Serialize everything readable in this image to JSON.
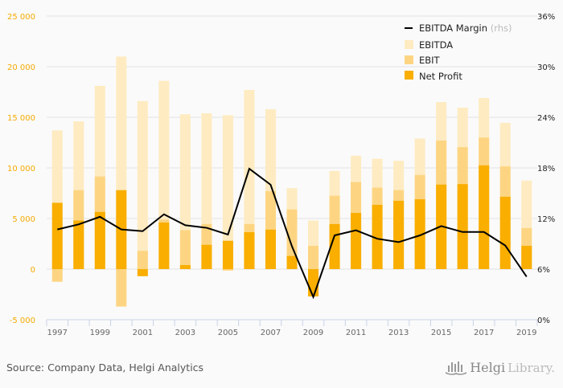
{
  "chart_data": {
    "type": "bar",
    "subtype": "overlapping-bars-with-line",
    "title": "",
    "categories": [
      "1997",
      "1998",
      "1999",
      "2000",
      "2001",
      "2002",
      "2003",
      "2004",
      "2005",
      "2006",
      "2007",
      "2008",
      "2009",
      "2010",
      "2011",
      "2012",
      "2013",
      "2014",
      "2015",
      "2016",
      "2017",
      "2018",
      "2019"
    ],
    "x_tick_labels": [
      "1997",
      "1999",
      "2001",
      "2003",
      "2005",
      "2007",
      "2009",
      "2011",
      "2013",
      "2015",
      "2017",
      "2019"
    ],
    "series": [
      {
        "name": "EBITDA",
        "axis": "left",
        "type": "bar",
        "color": "#feebc1",
        "values": [
          13700,
          14600,
          18100,
          21000,
          16600,
          18600,
          15300,
          15400,
          15200,
          17700,
          15800,
          8000,
          4800,
          9700,
          11200,
          10900,
          10700,
          12900,
          16500,
          15950,
          16900,
          14450,
          8750
        ]
      },
      {
        "name": "EBIT",
        "axis": "left",
        "type": "bar",
        "color": "#fdd582",
        "values": [
          -1250,
          7800,
          9150,
          -3700,
          1800,
          4900,
          3850,
          4450,
          -150,
          4450,
          7700,
          5900,
          2300,
          7250,
          8600,
          8050,
          7800,
          9300,
          12700,
          12050,
          13000,
          10150,
          4050
        ]
      },
      {
        "name": "Net Profit",
        "axis": "left",
        "type": "bar",
        "color": "#f9ae00",
        "values": [
          6550,
          4800,
          5650,
          7800,
          -700,
          4600,
          400,
          2400,
          2800,
          3650,
          3900,
          1300,
          -2700,
          4450,
          5550,
          6350,
          6750,
          6900,
          8350,
          8400,
          10250,
          7150,
          2300
        ]
      },
      {
        "name": "EBITDA Margin",
        "axis": "right",
        "type": "line",
        "color": "#000000",
        "unit": "%",
        "values": [
          10.7,
          11.3,
          12.2,
          10.7,
          10.5,
          12.5,
          11.2,
          10.9,
          10.1,
          17.9,
          16.0,
          8.7,
          2.7,
          10.0,
          10.6,
          9.6,
          9.2,
          10.0,
          11.1,
          10.4,
          10.4,
          8.8,
          5.1
        ]
      }
    ],
    "left_axis": {
      "ylim": [
        -5000,
        25000
      ],
      "ticks": [
        -5000,
        0,
        5000,
        10000,
        15000,
        20000,
        25000
      ],
      "tick_labels": [
        "-5 000",
        "0",
        "5 000",
        "10 000",
        "15 000",
        "20 000",
        "25 000"
      ],
      "color": "#f5aa00"
    },
    "right_axis": {
      "ylim": [
        0,
        36
      ],
      "ticks": [
        0,
        6,
        12,
        18,
        24,
        30,
        36
      ],
      "tick_labels": [
        "0%",
        "6%",
        "12%",
        "18%",
        "24%",
        "30%",
        "36%"
      ]
    },
    "xlabel": "",
    "ylabel": "",
    "grid": true,
    "legend": {
      "position": "top-right",
      "entries": [
        {
          "label": "EBITDA Margin",
          "suffix": "(rhs)",
          "marker": "line",
          "color": "#000000"
        },
        {
          "label": "EBITDA",
          "marker": "square",
          "color": "#feebc1"
        },
        {
          "label": "EBIT",
          "marker": "square",
          "color": "#fdd582"
        },
        {
          "label": "Net Profit",
          "marker": "square",
          "color": "#f9ae00"
        }
      ]
    }
  },
  "footer": {
    "source": "Source: Company Data, Helgi Analytics",
    "brand_part1": "Helgi",
    "brand_part2": "Library."
  }
}
